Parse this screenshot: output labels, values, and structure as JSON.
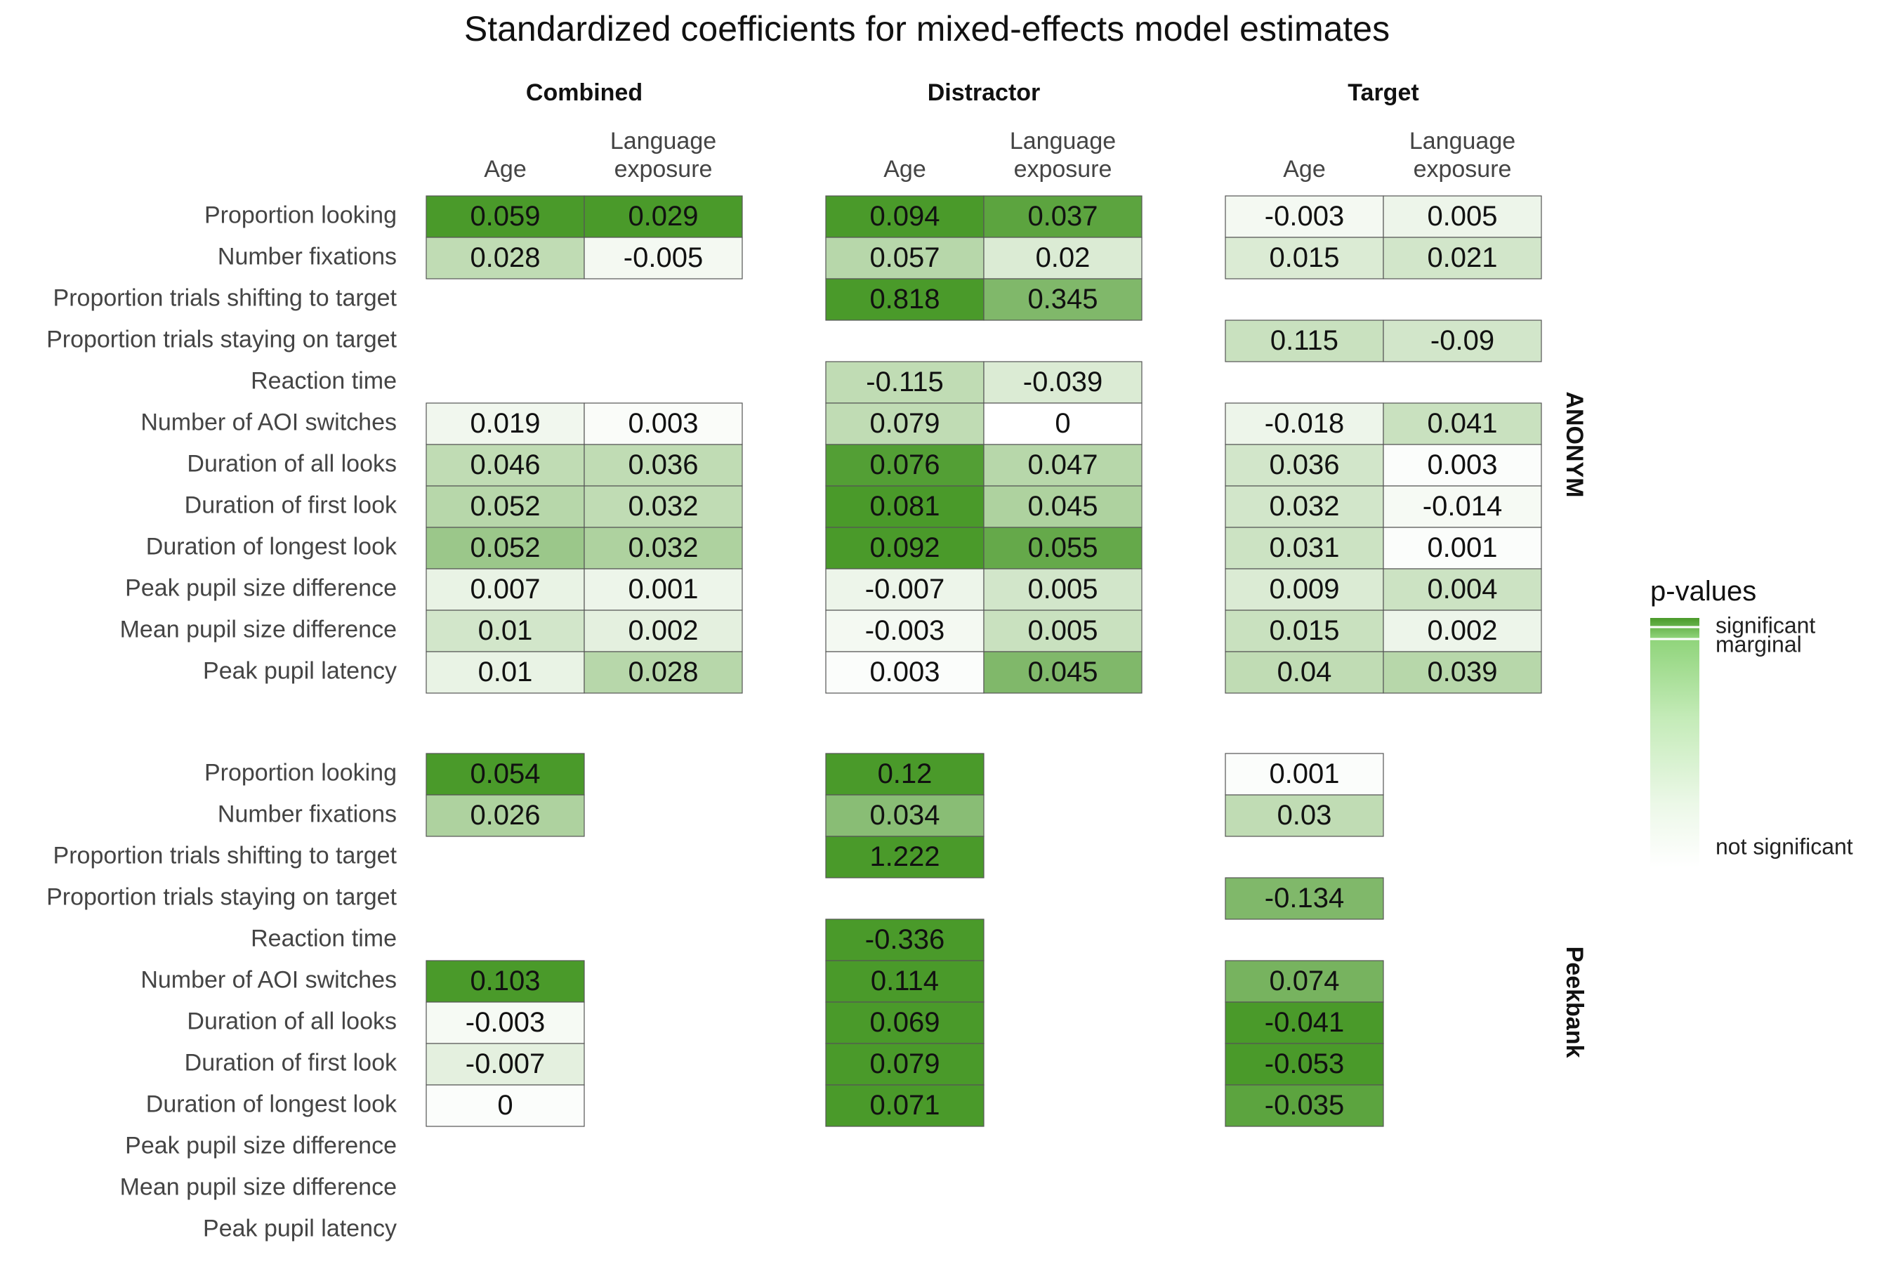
{
  "chart_data": {
    "type": "heatmap",
    "title": "Standardized coefficients for mixed-effects model estimates",
    "facet_columns": [
      "Combined",
      "Distractor",
      "Target"
    ],
    "column_labels": {
      "age": [
        "Age"
      ],
      "language_exposure": [
        "Language",
        "exposure"
      ]
    },
    "row_labels": [
      "Proportion looking",
      "Number fixations",
      "Proportion trials shifting to target",
      "Proportion trials staying on target",
      "Reaction time",
      "Number of AOI switches",
      "Duration of all looks",
      "Duration of first look",
      "Duration of longest look",
      "Peak pupil size difference",
      "Mean pupil size difference",
      "Peak pupil latency"
    ],
    "color_scale": {
      "significant": "#4a9a2a",
      "not_significant": "#ffffff"
    },
    "legend": {
      "title": "p-values",
      "labels": [
        "significant",
        "marginal",
        "not significant"
      ],
      "placement": "right"
    },
    "panels": [
      {
        "name": "ANONYM",
        "cells": {
          "Combined": {
            "age": [
              [
                "0.059",
                1.0
              ],
              [
                "0.028",
                0.35
              ],
              null,
              null,
              null,
              [
                "0.019",
                0.08
              ],
              [
                "0.046",
                0.35
              ],
              [
                "0.052",
                0.4
              ],
              [
                "0.052",
                0.55
              ],
              [
                "0.007",
                0.12
              ],
              [
                "0.01",
                0.25
              ],
              [
                "0.01",
                0.12
              ]
            ],
            "language_exposure": [
              [
                "0.029",
                1.0
              ],
              [
                "-0.005",
                0.06
              ],
              null,
              null,
              null,
              [
                "0.003",
                0.03
              ],
              [
                "0.036",
                0.35
              ],
              [
                "0.032",
                0.35
              ],
              [
                "0.032",
                0.45
              ],
              [
                "0.001",
                0.1
              ],
              [
                "0.002",
                0.15
              ],
              [
                "0.028",
                0.4
              ]
            ]
          },
          "Distractor": {
            "age": [
              [
                "0.094",
                1.0
              ],
              [
                "0.057",
                0.4
              ],
              [
                "0.818",
                1.0
              ],
              null,
              [
                "-0.115",
                0.35
              ],
              [
                "0.079",
                0.35
              ],
              [
                "0.076",
                0.95
              ],
              [
                "0.081",
                1.0
              ],
              [
                "0.092",
                1.0
              ],
              [
                "-0.007",
                0.1
              ],
              [
                "-0.003",
                0.06
              ],
              [
                "0.003",
                0.02
              ]
            ],
            "language_exposure": [
              [
                "0.037",
                0.9
              ],
              [
                "0.02",
                0.2
              ],
              [
                "0.345",
                0.7
              ],
              null,
              [
                "-0.039",
                0.2
              ],
              [
                "0",
                0.0
              ],
              [
                "0.047",
                0.4
              ],
              [
                "0.045",
                0.45
              ],
              [
                "0.055",
                0.85
              ],
              [
                "0.005",
                0.25
              ],
              [
                "0.005",
                0.3
              ],
              [
                "0.045",
                0.7
              ]
            ]
          },
          "Target": {
            "age": [
              [
                "-0.003",
                0.06
              ],
              [
                "0.015",
                0.2
              ],
              null,
              [
                "0.115",
                0.3
              ],
              null,
              [
                "-0.018",
                0.1
              ],
              [
                "0.036",
                0.25
              ],
              [
                "0.032",
                0.25
              ],
              [
                "0.031",
                0.28
              ],
              [
                "0.009",
                0.2
              ],
              [
                "0.015",
                0.3
              ],
              [
                "0.04",
                0.35
              ]
            ],
            "language_exposure": [
              [
                "0.005",
                0.1
              ],
              [
                "0.021",
                0.25
              ],
              null,
              [
                "-0.09",
                0.25
              ],
              null,
              [
                "0.041",
                0.3
              ],
              [
                "0.003",
                0.02
              ],
              [
                "-0.014",
                0.05
              ],
              [
                "0.001",
                0.02
              ],
              [
                "0.004",
                0.28
              ],
              [
                "0.002",
                0.1
              ],
              [
                "0.039",
                0.4
              ]
            ]
          }
        }
      },
      {
        "name": "Peekbank",
        "cells": {
          "Combined": {
            "age": [
              [
                "0.054",
                1.0
              ],
              [
                "0.026",
                0.45
              ],
              null,
              null,
              null,
              [
                "0.103",
                1.0
              ],
              [
                "-0.003",
                0.05
              ],
              [
                "-0.007",
                0.15
              ],
              [
                "0",
                0.02
              ],
              null,
              null,
              null
            ],
            "language_exposure": [
              null,
              null,
              null,
              null,
              null,
              null,
              null,
              null,
              null,
              null,
              null,
              null
            ]
          },
          "Distractor": {
            "age": [
              [
                "0.12",
                1.0
              ],
              [
                "0.034",
                0.65
              ],
              [
                "1.222",
                1.0
              ],
              null,
              [
                "-0.336",
                1.0
              ],
              [
                "0.114",
                1.0
              ],
              [
                "0.069",
                1.0
              ],
              [
                "0.079",
                1.0
              ],
              [
                "0.071",
                1.0
              ],
              null,
              null,
              null
            ],
            "language_exposure": [
              null,
              null,
              null,
              null,
              null,
              null,
              null,
              null,
              null,
              null,
              null,
              null
            ]
          },
          "Target": {
            "age": [
              [
                "0.001",
                0.02
              ],
              [
                "0.03",
                0.35
              ],
              null,
              [
                "-0.134",
                0.7
              ],
              null,
              [
                "0.074",
                0.75
              ],
              [
                "-0.041",
                1.0
              ],
              [
                "-0.053",
                1.0
              ],
              [
                "-0.035",
                0.9
              ],
              null,
              null,
              null
            ],
            "language_exposure": [
              null,
              null,
              null,
              null,
              null,
              null,
              null,
              null,
              null,
              null,
              null,
              null
            ]
          }
        }
      }
    ]
  }
}
